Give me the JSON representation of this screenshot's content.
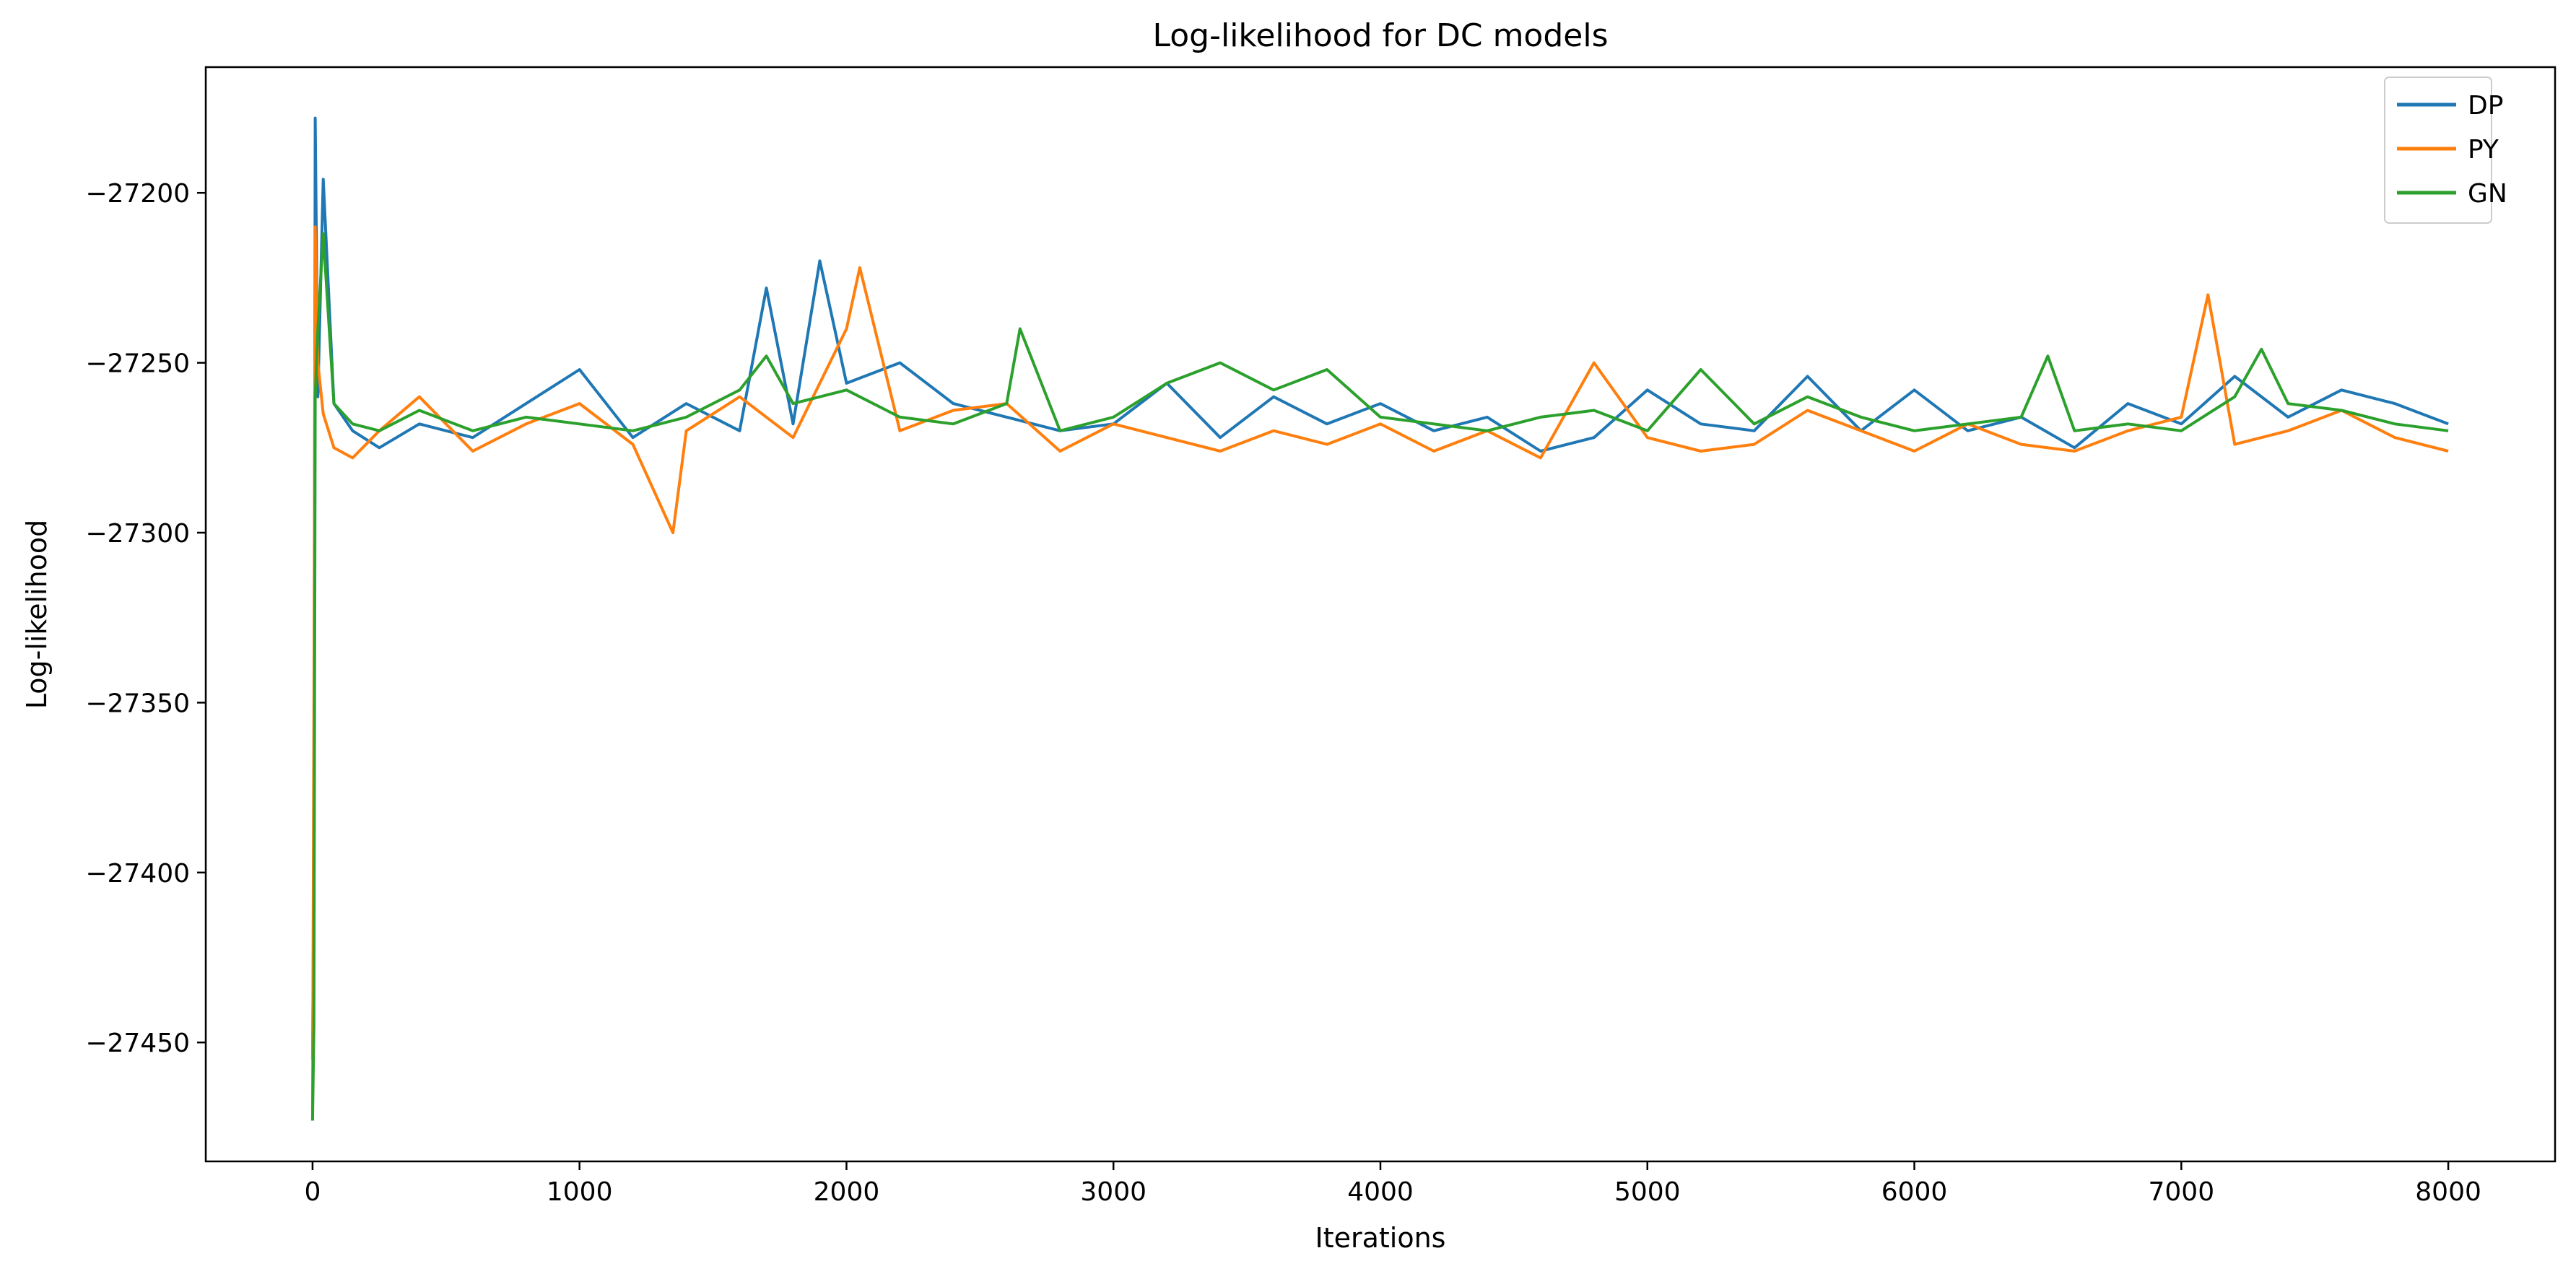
{
  "chart_data": {
    "type": "line",
    "title": "Log-likelihood for DC models",
    "xlabel": "Iterations",
    "ylabel": "Log-likelihood",
    "xlim": [
      -400,
      8400
    ],
    "ylim": [
      -27485,
      -27163
    ],
    "xticks": [
      0,
      1000,
      2000,
      3000,
      4000,
      5000,
      6000,
      7000,
      8000
    ],
    "xtick_labels": [
      "0",
      "1000",
      "2000",
      "3000",
      "4000",
      "5000",
      "6000",
      "7000",
      "8000"
    ],
    "yticks": [
      -27200,
      -27250,
      -27300,
      -27350,
      -27400,
      -27450
    ],
    "ytick_labels": [
      "−27200",
      "−27250",
      "−27300",
      "−27350",
      "−27400",
      "−27450"
    ],
    "grid": false,
    "legend_position": "top-right",
    "series": [
      {
        "name": "DP",
        "color": "#1f77b4",
        "x": [
          0,
          5,
          10,
          20,
          40,
          80,
          150,
          250,
          400,
          600,
          800,
          1000,
          1200,
          1400,
          1600,
          1700,
          1800,
          1900,
          2000,
          2200,
          2400,
          2600,
          2800,
          3000,
          3200,
          3400,
          3600,
          3800,
          4000,
          4200,
          4400,
          4600,
          4800,
          5000,
          5200,
          5400,
          5600,
          5800,
          6000,
          6200,
          6400,
          6600,
          6800,
          7000,
          7200,
          7400,
          7600,
          7800,
          8000
        ],
        "y": [
          -27455,
          -27400,
          -27178,
          -27260,
          -27196,
          -27262,
          -27270,
          -27275,
          -27268,
          -27272,
          -27262,
          -27252,
          -27272,
          -27262,
          -27270,
          -27228,
          -27268,
          -27220,
          -27256,
          -27250,
          -27262,
          -27266,
          -27270,
          -27268,
          -27256,
          -27272,
          -27260,
          -27268,
          -27262,
          -27270,
          -27266,
          -27276,
          -27272,
          -27258,
          -27268,
          -27270,
          -27254,
          -27270,
          -27258,
          -27270,
          -27266,
          -27275,
          -27262,
          -27268,
          -27254,
          -27266,
          -27258,
          -27262,
          -27268
        ]
      },
      {
        "name": "PY",
        "color": "#ff7f0e",
        "x": [
          0,
          5,
          10,
          20,
          40,
          80,
          150,
          250,
          400,
          600,
          800,
          1000,
          1200,
          1350,
          1400,
          1600,
          1800,
          2000,
          2050,
          2200,
          2400,
          2600,
          2800,
          3000,
          3200,
          3400,
          3600,
          3800,
          4000,
          4200,
          4400,
          4600,
          4800,
          5000,
          5200,
          5400,
          5600,
          5800,
          6000,
          6200,
          6400,
          6600,
          6800,
          7000,
          7100,
          7200,
          7400,
          7600,
          7800,
          8000
        ],
        "y": [
          -27470,
          -27350,
          -27210,
          -27250,
          -27265,
          -27275,
          -27278,
          -27270,
          -27260,
          -27276,
          -27268,
          -27262,
          -27274,
          -27300,
          -27270,
          -27260,
          -27272,
          -27240,
          -27222,
          -27270,
          -27264,
          -27262,
          -27276,
          -27268,
          -27272,
          -27276,
          -27270,
          -27274,
          -27268,
          -27276,
          -27270,
          -27278,
          -27250,
          -27272,
          -27276,
          -27274,
          -27264,
          -27270,
          -27276,
          -27268,
          -27274,
          -27276,
          -27270,
          -27266,
          -27230,
          -27274,
          -27270,
          -27264,
          -27272,
          -27276
        ]
      },
      {
        "name": "GN",
        "color": "#2ca02c",
        "x": [
          0,
          5,
          10,
          20,
          40,
          80,
          150,
          250,
          400,
          600,
          800,
          1000,
          1200,
          1400,
          1600,
          1700,
          1800,
          2000,
          2200,
          2400,
          2600,
          2650,
          2800,
          3000,
          3200,
          3400,
          3600,
          3800,
          4000,
          4200,
          4400,
          4600,
          4800,
          5000,
          5200,
          5400,
          5600,
          5800,
          6000,
          6200,
          6400,
          6500,
          6600,
          6800,
          7000,
          7200,
          7300,
          7400,
          7600,
          7800,
          8000
        ],
        "y": [
          -27473,
          -27445,
          -27260,
          -27240,
          -27212,
          -27262,
          -27268,
          -27270,
          -27264,
          -27270,
          -27266,
          -27268,
          -27270,
          -27266,
          -27258,
          -27248,
          -27262,
          -27258,
          -27266,
          -27268,
          -27262,
          -27240,
          -27270,
          -27266,
          -27256,
          -27250,
          -27258,
          -27252,
          -27266,
          -27268,
          -27270,
          -27266,
          -27264,
          -27270,
          -27252,
          -27268,
          -27260,
          -27266,
          -27270,
          -27268,
          -27266,
          -27248,
          -27270,
          -27268,
          -27270,
          -27260,
          -27246,
          -27262,
          -27264,
          -27268,
          -27270
        ]
      }
    ]
  }
}
